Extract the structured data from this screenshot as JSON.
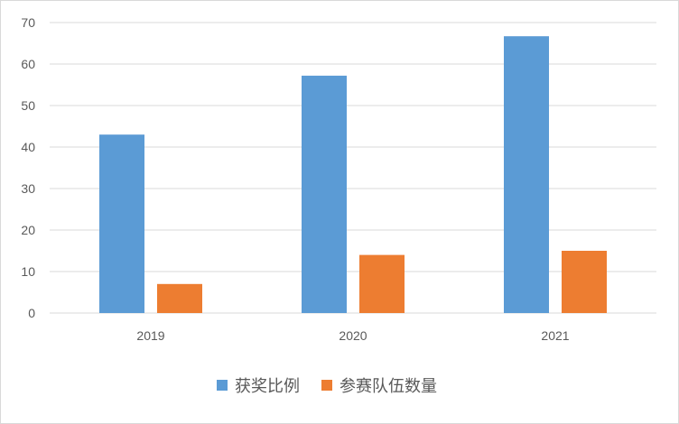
{
  "chart_data": {
    "type": "bar",
    "categories": [
      "2019",
      "2020",
      "2021"
    ],
    "series": [
      {
        "name": "获奖比例",
        "values": [
          43,
          57.2,
          66.7
        ],
        "color": "#5b9bd5"
      },
      {
        "name": "参赛队伍数量",
        "values": [
          7,
          14,
          15
        ],
        "color": "#ed7d31"
      }
    ],
    "ylim": [
      0,
      70
    ],
    "yticks": [
      0,
      10,
      20,
      30,
      40,
      50,
      60,
      70
    ],
    "grid": true,
    "gridColor": "#d9d9d9",
    "legend_position": "bottom",
    "title": "",
    "xlabel": "",
    "ylabel": ""
  }
}
